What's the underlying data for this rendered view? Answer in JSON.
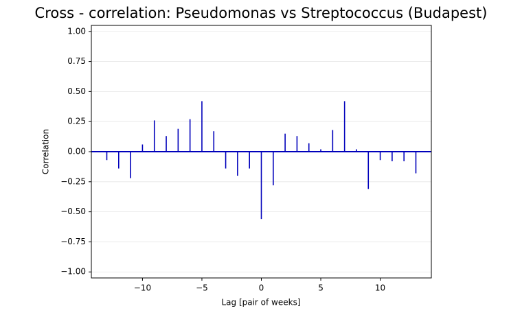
{
  "chart_data": {
    "type": "stem",
    "title": "Cross - correlation: Pseudomonas vs Streptococcus (Budapest)",
    "xlabel": "Lag [pair of weeks]",
    "ylabel": "Correlation",
    "x": [
      -13,
      -12,
      -11,
      -10,
      -9,
      -8,
      -7,
      -6,
      -5,
      -4,
      -3,
      -2,
      -1,
      0,
      1,
      2,
      3,
      4,
      5,
      6,
      7,
      8,
      9,
      10,
      11,
      12,
      13
    ],
    "values": [
      -0.07,
      -0.14,
      -0.22,
      0.06,
      0.26,
      0.13,
      0.19,
      0.27,
      0.42,
      0.17,
      -0.14,
      -0.2,
      -0.14,
      -0.56,
      -0.28,
      0.15,
      0.13,
      0.07,
      0.02,
      0.18,
      0.42,
      0.02,
      -0.31,
      -0.07,
      -0.08,
      -0.08,
      -0.18
    ],
    "color": "#0000bb",
    "xlim": [
      -14.3,
      14.3
    ],
    "xticks": [
      {
        "value": -10,
        "label": "−10"
      },
      {
        "value": -5,
        "label": "−5"
      },
      0,
      5,
      10
    ],
    "ylim": [
      -1.05,
      1.05
    ],
    "yticks": [
      {
        "value": -1,
        "label": "−1.00"
      },
      {
        "value": -0.75,
        "label": "−0.75"
      },
      {
        "value": -0.5,
        "label": "−0.50"
      },
      {
        "value": -0.25,
        "label": "−0.25"
      },
      {
        "value": 0,
        "label": "0.00"
      },
      0.25,
      {
        "value": 0.5,
        "label": "0.50"
      },
      0.75,
      {
        "value": 1,
        "label": "1.00"
      }
    ],
    "grid": true
  }
}
